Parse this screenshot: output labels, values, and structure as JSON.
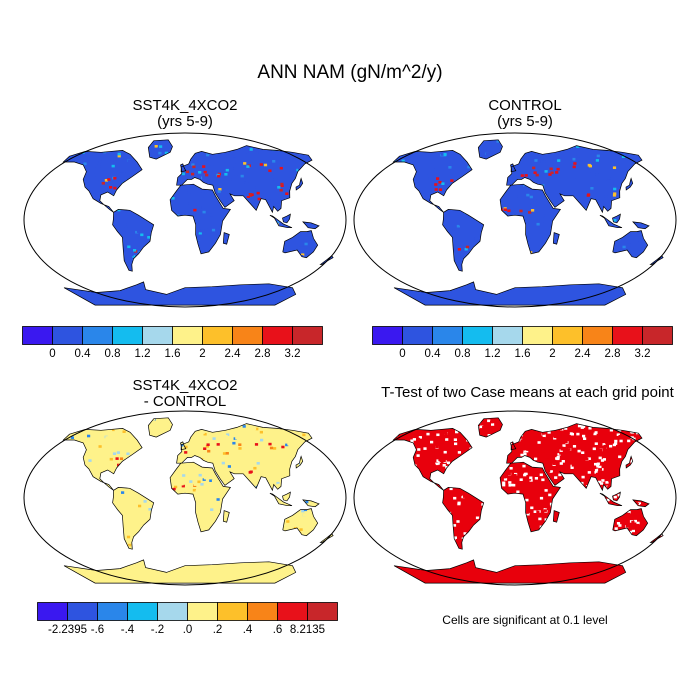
{
  "title": "ANN NAM (gN/m^2/y)",
  "colors": {
    "abs_palette": [
      "#3a18f0",
      "#2e54e0",
      "#2a86ea",
      "#14bcef",
      "#a6d8ec",
      "#fef28a",
      "#fdc02a",
      "#f88418",
      "#e8111a",
      "#c8262a"
    ],
    "diff_palette": [
      "#3a18f0",
      "#2e54e0",
      "#2a86ea",
      "#14bcef",
      "#a6d8ec",
      "#fef28a",
      "#fdc02a",
      "#f88418",
      "#e8111a",
      "#c8262a"
    ],
    "significant": "#e8000c",
    "outline": "#000000"
  },
  "chart_data": [
    {
      "type": "heatmap",
      "map_type": "global map",
      "title_lines": [
        "SST4K_4XCO2",
        "(yrs 5-9)"
      ],
      "colorbar": {
        "labels": [
          "0",
          "0.4",
          "0.8",
          "1.2",
          "1.6",
          "2",
          "2.4",
          "2.8",
          "3.2"
        ]
      }
    },
    {
      "type": "heatmap",
      "map_type": "global map",
      "title_lines": [
        "CONTROL",
        "(yrs 5-9)"
      ],
      "colorbar": {
        "labels": [
          "0",
          "0.4",
          "0.8",
          "1.2",
          "1.6",
          "2",
          "2.4",
          "2.8",
          "3.2"
        ]
      }
    },
    {
      "type": "heatmap",
      "map_type": "global map",
      "title_lines": [
        "SST4K_4XCO2",
        "- CONTROL"
      ],
      "colorbar": {
        "labels": [
          "-2.2395",
          "-.6",
          "-.4",
          "-.2",
          ".0",
          ".2",
          ".4",
          ".6",
          "8.2135"
        ]
      }
    },
    {
      "type": "heatmap",
      "map_type": "significance map",
      "title_lines": [
        "T-Test of two Case means at each grid point"
      ],
      "note": "Cells are significant at 0.1 level"
    }
  ]
}
